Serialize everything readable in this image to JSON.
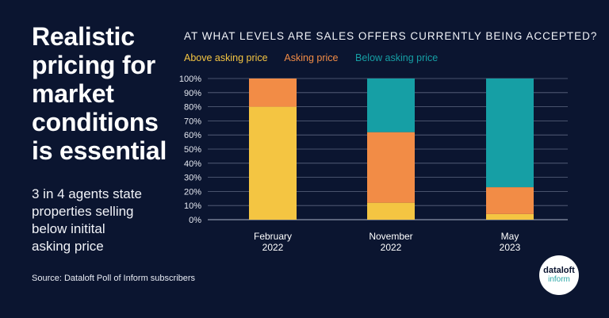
{
  "headline": {
    "lines": [
      "Realistic",
      "pricing for",
      "market",
      "conditions",
      "is essential"
    ]
  },
  "subtext": {
    "lines": [
      "3 in 4 agents state",
      "properties selling",
      "below initital",
      "asking price"
    ]
  },
  "source": "Source: Dataloft Poll of Inform subscribers",
  "logo": {
    "line1": "dataloft",
    "line2": "inform"
  },
  "colors": {
    "background": "#0b1530",
    "above": "#f4c542",
    "asking": "#f28c46",
    "below": "#169fa5"
  },
  "chart_data": {
    "type": "bar",
    "stacked": true,
    "title": "AT WHAT LEVELS ARE SALES OFFERS CURRENTLY BEING ACCEPTED?",
    "categories": [
      [
        "February",
        "2022"
      ],
      [
        "November",
        "2022"
      ],
      [
        "May",
        "2023"
      ]
    ],
    "series": [
      {
        "name": "Above asking price",
        "color": "#f4c542",
        "values": [
          80,
          12,
          4
        ]
      },
      {
        "name": "Asking price",
        "color": "#f28c46",
        "values": [
          20,
          50,
          19
        ]
      },
      {
        "name": "Below asking price",
        "color": "#169fa5",
        "values": [
          0,
          38,
          77
        ]
      }
    ],
    "yticks": [
      "0%",
      "10%",
      "20%",
      "30%",
      "40%",
      "50%",
      "60%",
      "70%",
      "80%",
      "90%",
      "100%"
    ],
    "ylim": [
      0,
      100
    ],
    "grid": true,
    "legend_position": "top-left"
  }
}
